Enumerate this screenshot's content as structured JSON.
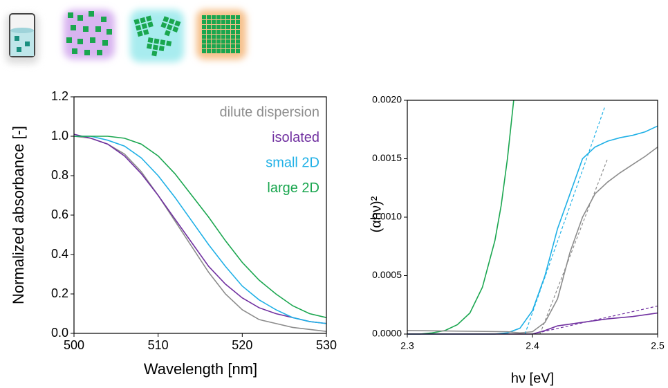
{
  "chart_data": [
    {
      "type": "line",
      "xlabel": "Wavelength [nm]",
      "ylabel": "Normalized absorbance [-]",
      "x": [
        500,
        502,
        504,
        506,
        508,
        510,
        512,
        514,
        516,
        518,
        520,
        522,
        524,
        526,
        528,
        530
      ],
      "series": [
        {
          "name": "dilute dispersion",
          "color": "#8c8c8c",
          "values": [
            1.0,
            0.99,
            0.96,
            0.91,
            0.82,
            0.7,
            0.57,
            0.44,
            0.31,
            0.2,
            0.12,
            0.07,
            0.05,
            0.03,
            0.02,
            0.01
          ]
        },
        {
          "name": "isolated",
          "color": "#7030a0",
          "values": [
            1.01,
            0.99,
            0.96,
            0.9,
            0.81,
            0.7,
            0.58,
            0.46,
            0.34,
            0.25,
            0.18,
            0.13,
            0.1,
            0.08,
            0.06,
            0.05
          ]
        },
        {
          "name": "small 2D",
          "color": "#1fb0e6",
          "values": [
            1.0,
            1.0,
            0.98,
            0.95,
            0.89,
            0.8,
            0.69,
            0.57,
            0.45,
            0.34,
            0.24,
            0.17,
            0.12,
            0.08,
            0.06,
            0.05
          ]
        },
        {
          "name": "large 2D",
          "color": "#1aa64f",
          "values": [
            1.0,
            1.0,
            1.0,
            0.99,
            0.96,
            0.9,
            0.81,
            0.7,
            0.59,
            0.47,
            0.36,
            0.27,
            0.2,
            0.14,
            0.1,
            0.08
          ]
        }
      ],
      "xlim": [
        500,
        530
      ],
      "xticks": [
        500,
        510,
        520,
        530
      ],
      "ylim": [
        0,
        1.2
      ],
      "yticks": [
        {
          "value": 0,
          "label": "0.0"
        },
        {
          "value": 0.2,
          "label": "0.2"
        },
        {
          "value": 0.4,
          "label": "0.4"
        },
        {
          "value": 0.6,
          "label": "0.6"
        },
        {
          "value": 0.8,
          "label": "0.8"
        },
        {
          "value": 1.0,
          "label": "1.0"
        },
        {
          "value": 1.2,
          "label": "1.2"
        }
      ],
      "legend": "upper right"
    },
    {
      "type": "line",
      "xlabel": "hν [eV]",
      "ylabel": "(αhν)²",
      "series": [
        {
          "color": "#1aa64f",
          "x": [
            2.3,
            2.31,
            2.32,
            2.33,
            2.34,
            2.35,
            2.36,
            2.37,
            2.375,
            2.38,
            2.385
          ],
          "values": [
            0,
            0,
            1e-05,
            3e-05,
            8e-05,
            0.00018,
            0.0004,
            0.0008,
            0.0011,
            0.0015,
            0.002
          ]
        },
        {
          "color": "#1fb0e6",
          "x": [
            2.3,
            2.37,
            2.38,
            2.39,
            2.4,
            2.41,
            2.42,
            2.43,
            2.44,
            2.45,
            2.46,
            2.47,
            2.48,
            2.49,
            2.5
          ],
          "values": [
            0,
            0,
            1e-05,
            5e-05,
            0.0002,
            0.0005,
            0.0009,
            0.0012,
            0.0015,
            0.0016,
            0.00165,
            0.00168,
            0.0017,
            0.00173,
            0.00178
          ]
        },
        {
          "color": "#8c8c8c",
          "x": [
            2.3,
            2.38,
            2.39,
            2.4,
            2.41,
            2.42,
            2.43,
            2.44,
            2.45,
            2.46,
            2.47,
            2.48,
            2.49,
            2.5
          ],
          "values": [
            3e-05,
            2e-05,
            1e-05,
            2e-05,
            0.0001,
            0.0003,
            0.0007,
            0.001,
            0.0012,
            0.0013,
            0.00138,
            0.00145,
            0.00152,
            0.0016
          ]
        },
        {
          "color": "#7030a0",
          "x": [
            2.3,
            2.4,
            2.41,
            2.42,
            2.44,
            2.46,
            2.48,
            2.5
          ],
          "values": [
            0,
            0,
            3e-05,
            7e-05,
            0.0001,
            0.00013,
            0.00015,
            0.00018
          ]
        },
        {
          "color": "#1fb0e6",
          "dashed": true,
          "x": [
            2.394,
            2.458
          ],
          "values": [
            0,
            0.00195
          ]
        },
        {
          "color": "#8c8c8c",
          "dashed": true,
          "x": [
            2.406,
            2.46
          ],
          "values": [
            0,
            0.0015
          ]
        },
        {
          "color": "#7030a0",
          "dashed": true,
          "x": [
            2.4,
            2.5
          ],
          "values": [
            0,
            0.00024
          ]
        }
      ],
      "xlim": [
        2.3,
        2.5
      ],
      "xticks": [
        2.3,
        2.4,
        2.5
      ],
      "ylim": [
        0,
        0.002
      ],
      "yticks": [
        {
          "value": 0,
          "label": "0.0000"
        },
        {
          "value": 0.0005,
          "label": "0.0005"
        },
        {
          "value": 0.001,
          "label": "0.0010"
        },
        {
          "value": 0.0015,
          "label": "0.0015"
        },
        {
          "value": 0.002,
          "label": "0.0020"
        }
      ]
    }
  ]
}
